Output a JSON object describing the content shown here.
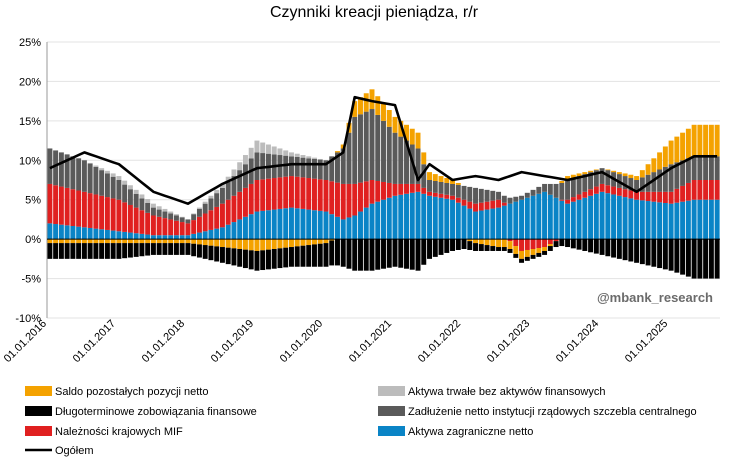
{
  "chart_data": {
    "type": "bar",
    "title": "Czynniki kreacji pieniądza, r/r",
    "watermark": "@mbank_research",
    "ylim": [
      -10,
      25
    ],
    "yticks": [
      "25%",
      "20%",
      "15%",
      "10%",
      "5%",
      "0%",
      "-5%",
      "-10%"
    ],
    "ytick_values": [
      25,
      20,
      15,
      10,
      5,
      0,
      -5,
      -10
    ],
    "xticks": [
      "01.01.2016",
      "01.01.2017",
      "01.01.2018",
      "01.01.2019",
      "01.01.2020",
      "01.01.2021",
      "01.01.2022",
      "01.01.2023",
      "01.01.2024",
      "01.01.2025"
    ],
    "xtick_months": [
      0,
      12,
      24,
      36,
      48,
      60,
      72,
      84,
      96,
      108
    ],
    "months": 117,
    "keyframes": [
      0,
      6,
      12,
      18,
      24,
      30,
      36,
      42,
      48,
      51,
      53,
      56,
      60,
      64,
      66,
      70,
      74,
      78,
      82,
      86,
      90,
      96,
      102,
      108,
      112,
      116
    ],
    "legend_layout": "below plot, two columns",
    "series": [
      {
        "name": "Aktywa zagraniczne netto",
        "kind": "bar",
        "color": "#0a84c6",
        "values": [
          2.0,
          1.5,
          1.0,
          0.5,
          0.5,
          1.5,
          3.5,
          4.0,
          3.5,
          2.5,
          3.0,
          4.5,
          5.5,
          6.0,
          5.5,
          5.0,
          3.5,
          4.0,
          5.0,
          6.0,
          4.5,
          6.0,
          5.0,
          4.5,
          5.0,
          5.0
        ]
      },
      {
        "name": "Należności krajowych MIF",
        "kind": "bar",
        "color": "#e02020",
        "values": [
          5.0,
          4.5,
          4.0,
          2.5,
          1.5,
          3.0,
          4.0,
          4.0,
          4.0,
          4.5,
          4.0,
          3.0,
          1.5,
          1.0,
          0.5,
          0.5,
          1.0,
          1.0,
          -1.5,
          -1.0,
          0.5,
          1.0,
          1.0,
          1.5,
          2.5,
          2.5
        ]
      },
      {
        "name": "Zadłużenie netto instytucji rządowych szczebla centralnego",
        "kind": "bar",
        "color": "#5a5a5a",
        "values": [
          4.5,
          4.0,
          2.5,
          1.0,
          0.5,
          2.0,
          3.5,
          2.5,
          2.5,
          4.5,
          8.5,
          9.0,
          6.5,
          4.5,
          1.5,
          1.5,
          2.0,
          1.0,
          0.5,
          1.0,
          2.5,
          2.0,
          1.5,
          3.5,
          3.0,
          3.0
        ]
      },
      {
        "name": "Aktywa trwałe bez aktywów finansowych",
        "kind": "bar",
        "color": "#bcbcbc",
        "values": [
          0.0,
          0.0,
          0.5,
          0.5,
          0.0,
          0.5,
          1.5,
          0.5,
          0.0,
          0.0,
          0.0,
          0.0,
          0.0,
          0.0,
          0.0,
          0.0,
          0.0,
          0.0,
          0.0,
          0.0,
          0.0,
          0.0,
          0.0,
          0.0,
          0.0,
          0.0
        ]
      },
      {
        "name": "Saldo pozostałych pozycji netto",
        "kind": "bar",
        "color": "#f4a200",
        "values": [
          -0.5,
          -0.5,
          -0.5,
          -0.5,
          -0.5,
          -1.0,
          -1.5,
          -1.0,
          -0.5,
          0.5,
          2.0,
          2.5,
          2.0,
          2.0,
          1.0,
          0.5,
          -0.5,
          -1.0,
          -1.0,
          -0.5,
          0.5,
          0.0,
          0.5,
          3.0,
          4.0,
          4.0
        ]
      },
      {
        "name": "Długoterminowe zobowiązania finansowe",
        "kind": "bar",
        "color": "#000000",
        "values": [
          -2.0,
          -2.0,
          -2.0,
          -1.5,
          -1.5,
          -2.0,
          -2.5,
          -2.5,
          -3.0,
          -3.5,
          -4.0,
          -4.0,
          -3.5,
          -4.0,
          -2.5,
          -1.5,
          -1.0,
          -0.5,
          -0.5,
          -0.5,
          -1.0,
          -2.0,
          -3.0,
          -4.0,
          -5.0,
          -5.0
        ]
      },
      {
        "name": "Ogółem",
        "kind": "line",
        "color": "#000000",
        "values": [
          9.0,
          11.0,
          9.5,
          6.0,
          4.5,
          7.0,
          9.0,
          9.5,
          9.5,
          11.0,
          18.0,
          17.5,
          17.0,
          7.5,
          9.5,
          7.5,
          8.0,
          7.5,
          8.5,
          8.0,
          7.5,
          8.5,
          6.0,
          9.0,
          10.5,
          10.5
        ]
      }
    ],
    "legend": [
      {
        "name": "Saldo pozostałych pozycji netto",
        "color": "#f4a200",
        "kind": "box"
      },
      {
        "name": "Aktywa trwałe bez aktywów finansowych",
        "color": "#bcbcbc",
        "kind": "box"
      },
      {
        "name": "Długoterminowe zobowiązania finansowe",
        "color": "#000000",
        "kind": "box"
      },
      {
        "name": "Zadłużenie netto instytucji rządowych szczebla centralnego",
        "color": "#5a5a5a",
        "kind": "box"
      },
      {
        "name": "Należności krajowych MIF",
        "color": "#e02020",
        "kind": "box"
      },
      {
        "name": "Aktywa zagraniczne netto",
        "color": "#0a84c6",
        "kind": "box"
      },
      {
        "name": "Ogółem",
        "color": "#000000",
        "kind": "line"
      }
    ]
  }
}
